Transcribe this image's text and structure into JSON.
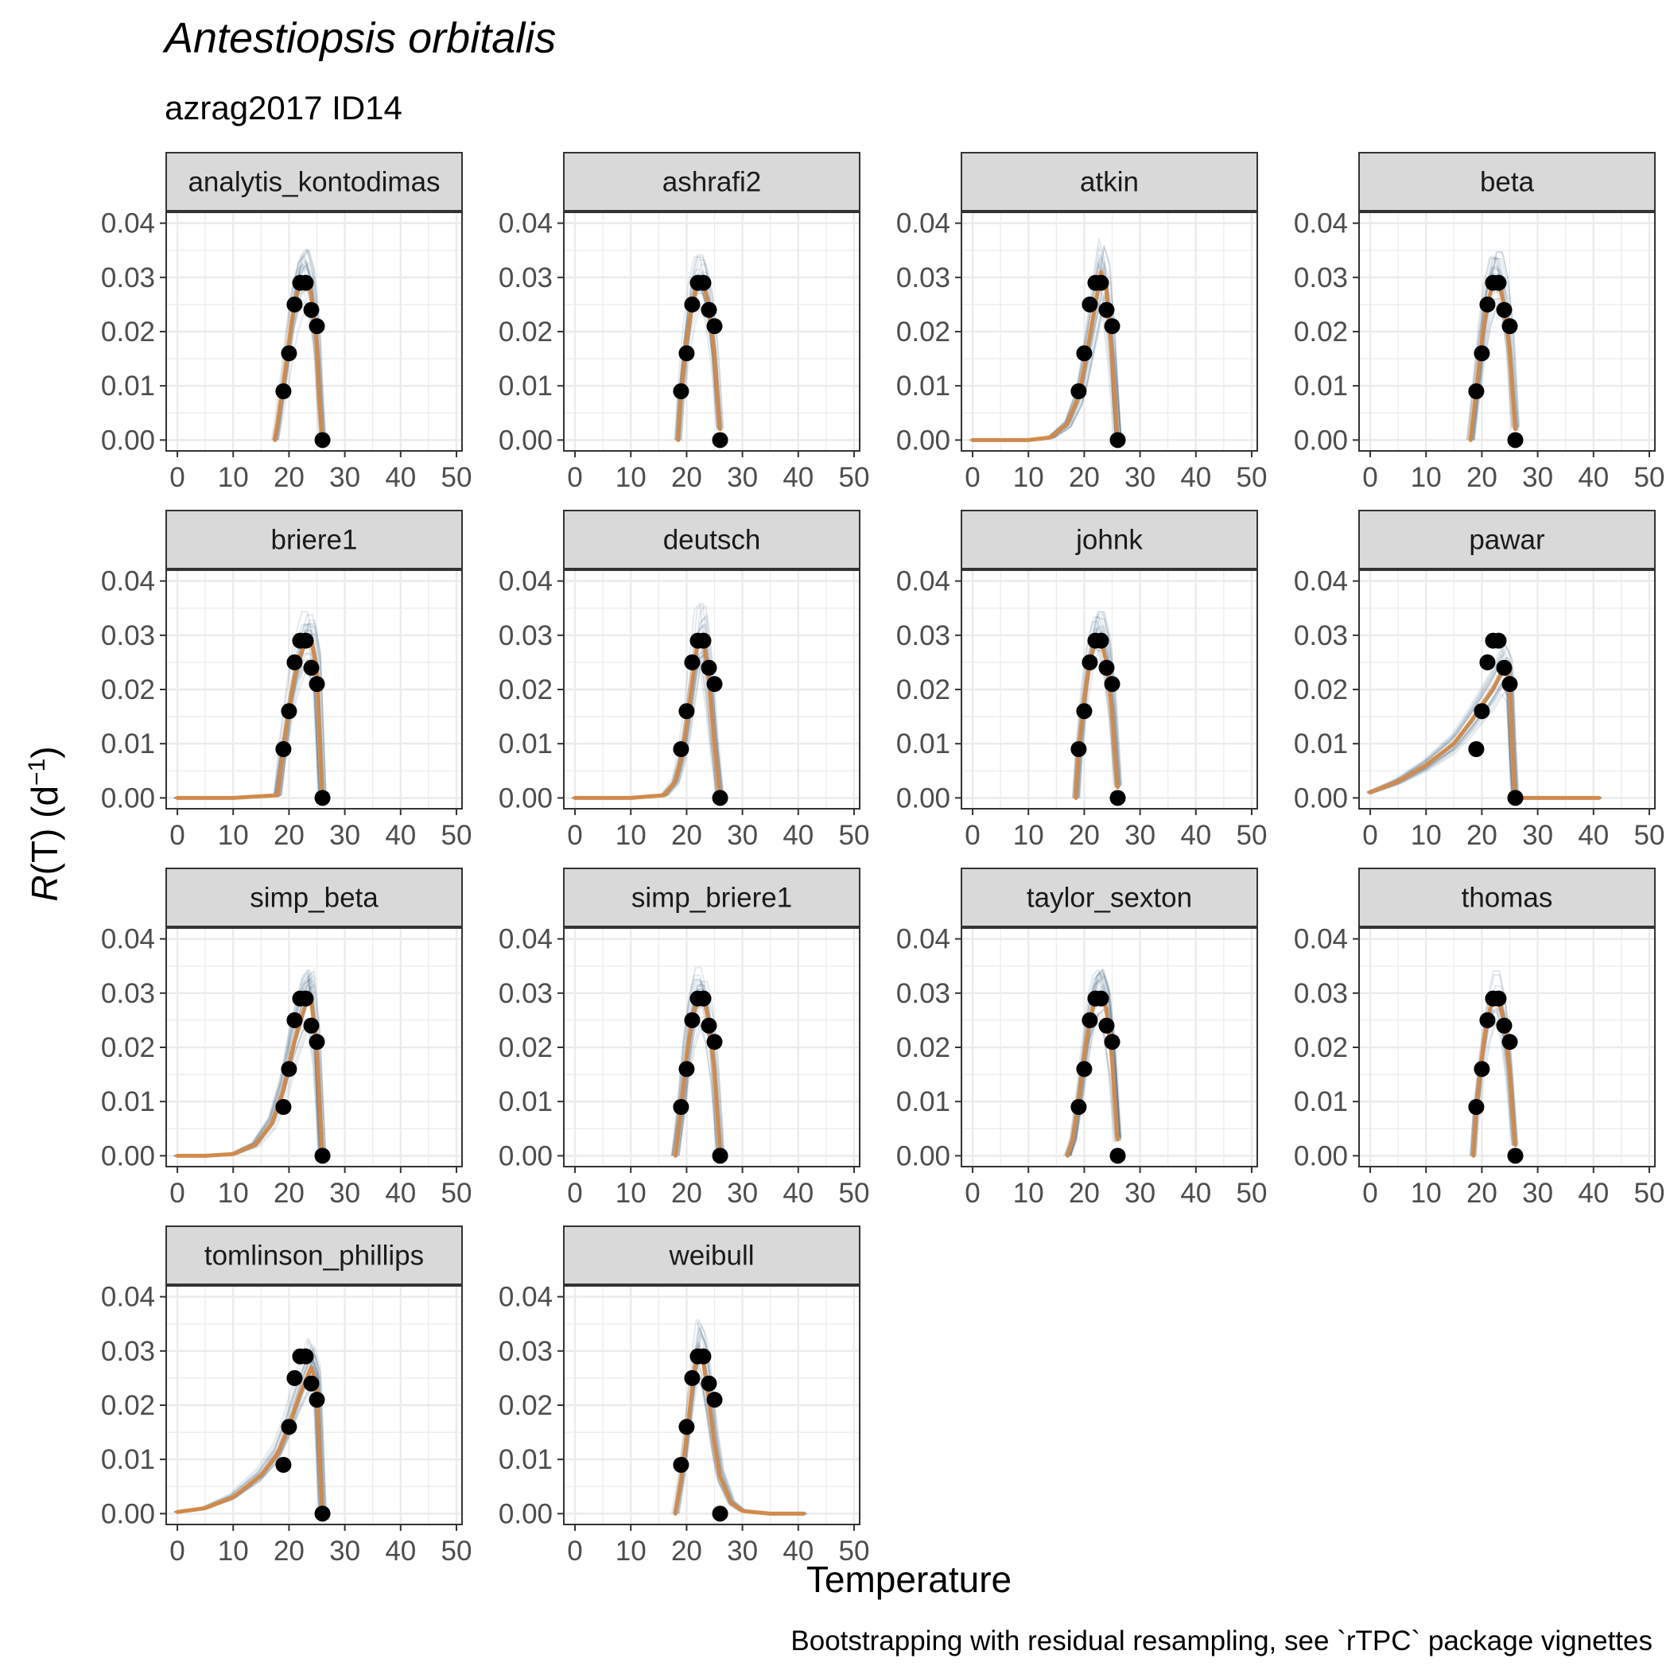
{
  "header": {
    "title": "Antestiopsis orbitalis",
    "subtitle": "azrag2017 ID14"
  },
  "axes": {
    "xlabel": "Temperature",
    "ylabel_prefix": "R",
    "ylabel_middle": "(T) (d",
    "ylabel_sup": "−1",
    "ylabel_suffix": ")"
  },
  "caption": "Bootstrapping with residual resampling, see `rTPC` package vignettes",
  "colors": {
    "fit": "#d08a4b",
    "bootstrap": "#1f4e6b",
    "points": "#000000",
    "strip_fill": "#d9d9d9",
    "grid": "#ebebeb"
  },
  "chart_data": {
    "type": "line",
    "facet_layout": "4 columns, 4 rows (14 panels)",
    "xlim": [
      -2,
      51
    ],
    "ylim": [
      -0.002,
      0.042
    ],
    "x_ticks": [
      0,
      10,
      20,
      30,
      40,
      50
    ],
    "y_ticks": [
      0.0,
      0.01,
      0.02,
      0.03,
      0.04
    ],
    "x_tick_labels": [
      "0",
      "10",
      "20",
      "30",
      "40",
      "50"
    ],
    "y_tick_labels": [
      "0.00",
      "0.01",
      "0.02",
      "0.03",
      "0.04"
    ],
    "grid": true,
    "observed_points": {
      "x": [
        19,
        20,
        21,
        22,
        23,
        24,
        25,
        26
      ],
      "y": [
        0.009,
        0.016,
        0.025,
        0.029,
        0.029,
        0.024,
        0.021,
        0.0
      ]
    },
    "panels": [
      {
        "name": "analytis_kontodimas",
        "fit": {
          "x": [
            17.5,
            18,
            19,
            20,
            21,
            22,
            23,
            24,
            25,
            25.5,
            26
          ],
          "y": [
            0,
            0.003,
            0.01,
            0.018,
            0.025,
            0.029,
            0.03,
            0.027,
            0.018,
            0.008,
            0
          ]
        }
      },
      {
        "name": "ashrafi2",
        "fit": {
          "x": [
            18.5,
            19,
            20,
            21,
            22,
            23,
            24,
            25,
            26
          ],
          "y": [
            0,
            0.008,
            0.018,
            0.025,
            0.029,
            0.029,
            0.025,
            0.016,
            0.002
          ]
        }
      },
      {
        "name": "atkin",
        "fit": {
          "x": [
            0,
            5,
            10,
            14,
            17,
            19,
            20,
            21,
            22,
            23,
            24,
            25,
            26
          ],
          "y": [
            0,
            0,
            0,
            0.0005,
            0.003,
            0.008,
            0.013,
            0.019,
            0.025,
            0.031,
            0.028,
            0.016,
            0
          ]
        }
      },
      {
        "name": "beta",
        "fit": {
          "x": [
            18,
            19,
            20,
            21,
            22,
            23,
            24,
            25,
            26
          ],
          "y": [
            0.0,
            0.009,
            0.018,
            0.025,
            0.029,
            0.029,
            0.025,
            0.017,
            0.002
          ]
        }
      },
      {
        "name": "briere1",
        "fit": {
          "x": [
            0,
            10,
            18,
            19,
            20,
            21,
            22,
            23,
            24,
            25,
            26
          ],
          "y": [
            0,
            0,
            0.0005,
            0.009,
            0.016,
            0.022,
            0.026,
            0.029,
            0.029,
            0.024,
            0
          ]
        }
      },
      {
        "name": "deutsch",
        "fit": {
          "x": [
            0,
            10,
            16,
            18,
            19,
            20,
            21,
            22,
            23,
            24,
            25,
            26
          ],
          "y": [
            0,
            0,
            0.0005,
            0.003,
            0.007,
            0.013,
            0.021,
            0.029,
            0.03,
            0.022,
            0.01,
            0
          ]
        }
      },
      {
        "name": "johnk",
        "fit": {
          "x": [
            18.5,
            19,
            20,
            21,
            22,
            23,
            24,
            25,
            26
          ],
          "y": [
            0,
            0.008,
            0.018,
            0.025,
            0.029,
            0.029,
            0.025,
            0.016,
            0.002
          ]
        }
      },
      {
        "name": "pawar",
        "fit": {
          "x": [
            0,
            5,
            10,
            15,
            18,
            20,
            22,
            24,
            25,
            25.5,
            26,
            30,
            41
          ],
          "y": [
            0.001,
            0.003,
            0.006,
            0.01,
            0.014,
            0.017,
            0.02,
            0.024,
            0.022,
            0.01,
            0,
            0,
            0
          ]
        }
      },
      {
        "name": "simp_beta",
        "fit": {
          "x": [
            0,
            5,
            10,
            14,
            17,
            19,
            21,
            23,
            24,
            25,
            26
          ],
          "y": [
            0,
            0,
            0.0003,
            0.002,
            0.006,
            0.012,
            0.021,
            0.028,
            0.029,
            0.02,
            0
          ]
        }
      },
      {
        "name": "simp_briere1",
        "fit": {
          "x": [
            18,
            19,
            20,
            21,
            22,
            23,
            24,
            25,
            26
          ],
          "y": [
            0,
            0.008,
            0.018,
            0.025,
            0.029,
            0.029,
            0.025,
            0.016,
            0.001
          ]
        }
      },
      {
        "name": "taylor_sexton",
        "fit": {
          "x": [
            17,
            18,
            19,
            20,
            21,
            22,
            23,
            24,
            25,
            26
          ],
          "y": [
            0,
            0.003,
            0.01,
            0.018,
            0.025,
            0.029,
            0.03,
            0.027,
            0.018,
            0.003
          ]
        }
      },
      {
        "name": "thomas",
        "fit": {
          "x": [
            18.5,
            19,
            20,
            21,
            22,
            23,
            24,
            25,
            26
          ],
          "y": [
            0,
            0.008,
            0.018,
            0.025,
            0.029,
            0.029,
            0.025,
            0.016,
            0.002
          ]
        }
      },
      {
        "name": "tomlinson_phillips",
        "fit": {
          "x": [
            0,
            5,
            10,
            15,
            18,
            20,
            22,
            24,
            25,
            25.5,
            26
          ],
          "y": [
            0.0003,
            0.001,
            0.003,
            0.007,
            0.011,
            0.016,
            0.022,
            0.027,
            0.024,
            0.012,
            0
          ]
        }
      },
      {
        "name": "weibull",
        "fit": {
          "x": [
            18,
            19,
            20,
            21,
            22,
            23,
            24,
            25,
            26,
            28,
            30,
            35,
            41
          ],
          "y": [
            0.0,
            0.006,
            0.014,
            0.023,
            0.03,
            0.028,
            0.021,
            0.013,
            0.007,
            0.002,
            0.0005,
            0,
            0
          ]
        }
      }
    ]
  }
}
